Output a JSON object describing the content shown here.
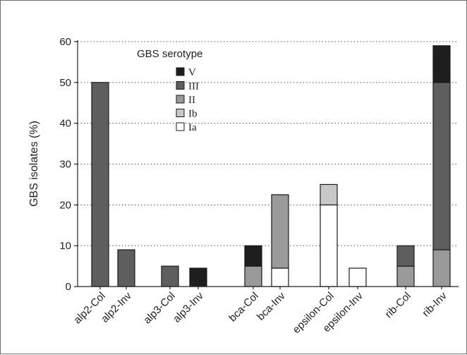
{
  "chart_data": {
    "type": "bar",
    "stacked": true,
    "ylabel": "GBS isolates (%)",
    "xlabel": "",
    "ylim": [
      0,
      60
    ],
    "yticks": [
      0,
      10,
      20,
      30,
      40,
      50,
      60
    ],
    "grid": "horizontal dotted",
    "categories": [
      "alp2-Col",
      "alp2-Inv",
      "alp3-Col",
      "alp3-Inv",
      "bca-Col",
      "bca-Inv",
      "epsilon-Col",
      "epsilon-Inv",
      "rib-Col",
      "rib-Inv"
    ],
    "legend": {
      "title": "GBS serotype",
      "placement": "top-left",
      "order": [
        "V",
        "III",
        "II",
        "Ib",
        "Ia"
      ]
    },
    "series": [
      {
        "name": "Ia",
        "color": "#ffffff",
        "values": [
          0,
          0,
          0,
          0,
          0,
          4.5,
          20,
          4.5,
          0,
          0
        ]
      },
      {
        "name": "Ib",
        "color": "#c8c8c8",
        "values": [
          0,
          0,
          0,
          0,
          0,
          0,
          5,
          0,
          0,
          0
        ]
      },
      {
        "name": "II",
        "color": "#9a9a9a",
        "values": [
          0,
          0,
          0,
          0,
          5,
          18,
          0,
          0,
          5,
          9
        ]
      },
      {
        "name": "III",
        "color": "#5e5e5e",
        "values": [
          50,
          9,
          5,
          0,
          0,
          0,
          0,
          0,
          5,
          41
        ]
      },
      {
        "name": "V",
        "color": "#1e1e1e",
        "values": [
          0,
          0,
          0,
          4.5,
          5,
          0,
          0,
          0,
          0,
          9
        ]
      }
    ]
  }
}
